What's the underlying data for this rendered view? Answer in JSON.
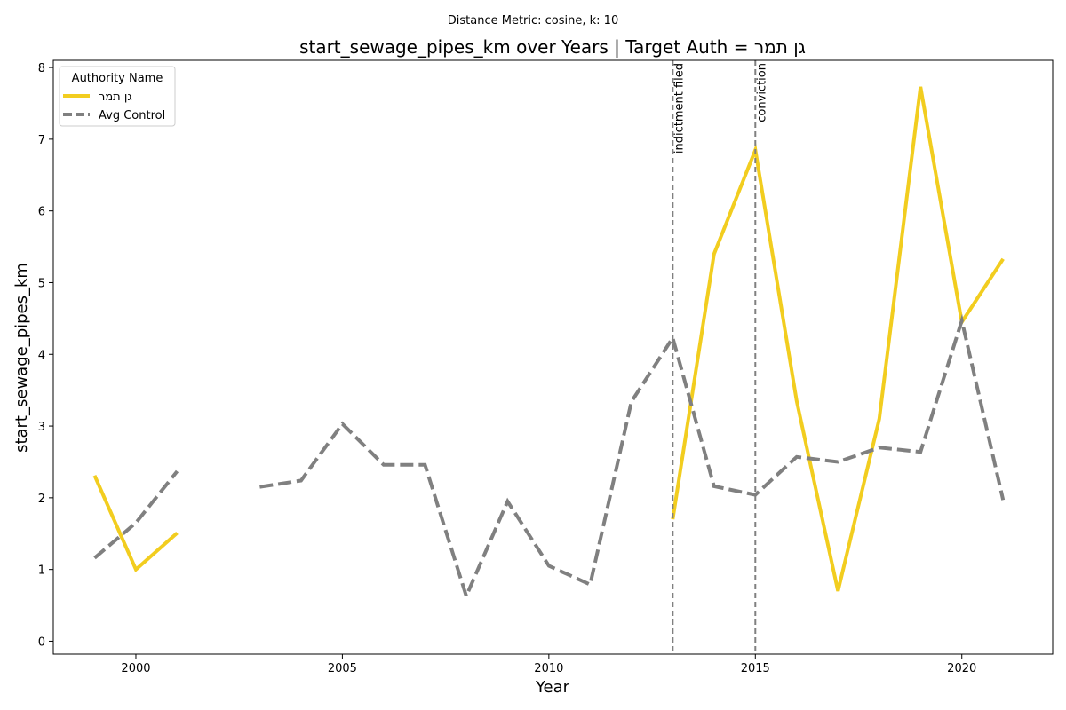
{
  "chart_data": {
    "type": "line",
    "suptitle": "Distance Metric: cosine, k: 10",
    "title": "start_sewage_pipes_km over Years | Target Auth = גן תמר",
    "xlabel": "Year",
    "ylabel": "start_sewage_pipes_km",
    "xlim": [
      1998,
      2022.2
    ],
    "ylim": [
      -0.18,
      8.1
    ],
    "xticks": [
      2000,
      2005,
      2010,
      2015,
      2020
    ],
    "yticks": [
      0,
      1,
      2,
      3,
      4,
      5,
      6,
      7,
      8
    ],
    "grid": false,
    "legend": {
      "title": "Authority Name",
      "placement": "top-left"
    },
    "series": [
      {
        "name": "גן תמר",
        "color": "#f2cd1f",
        "style": "solid",
        "points": [
          [
            1999,
            2.31
          ],
          [
            2000,
            1.0
          ],
          [
            2001,
            1.51
          ],
          [
            2002,
            null
          ],
          [
            2013,
            1.7
          ],
          [
            2014,
            5.4
          ],
          [
            2015,
            6.85
          ],
          [
            2016,
            3.35
          ],
          [
            2017,
            0.7
          ],
          [
            2018,
            3.1
          ],
          [
            2019,
            7.73
          ],
          [
            2020,
            4.45
          ],
          [
            2021,
            5.33
          ]
        ]
      },
      {
        "name": "Avg Control",
        "color": "#808080",
        "style": "dashed",
        "points": [
          [
            1999,
            1.16
          ],
          [
            2000,
            1.65
          ],
          [
            2001,
            2.37
          ],
          [
            2002,
            null
          ],
          [
            2003,
            2.15
          ],
          [
            2004,
            2.24
          ],
          [
            2005,
            3.03
          ],
          [
            2006,
            2.46
          ],
          [
            2007,
            2.46
          ],
          [
            2008,
            0.63
          ],
          [
            2009,
            1.95
          ],
          [
            2010,
            1.05
          ],
          [
            2011,
            0.79
          ],
          [
            2012,
            3.34
          ],
          [
            2013,
            4.23
          ],
          [
            2014,
            2.16
          ],
          [
            2015,
            2.04
          ],
          [
            2016,
            2.57
          ],
          [
            2017,
            2.5
          ],
          [
            2018,
            2.7
          ],
          [
            2019,
            2.64
          ],
          [
            2020,
            4.47
          ],
          [
            2021,
            1.97
          ]
        ]
      }
    ],
    "annotations": [
      {
        "x": 2013,
        "label": "indictment filed"
      },
      {
        "x": 2015,
        "label": "conviction"
      }
    ]
  }
}
